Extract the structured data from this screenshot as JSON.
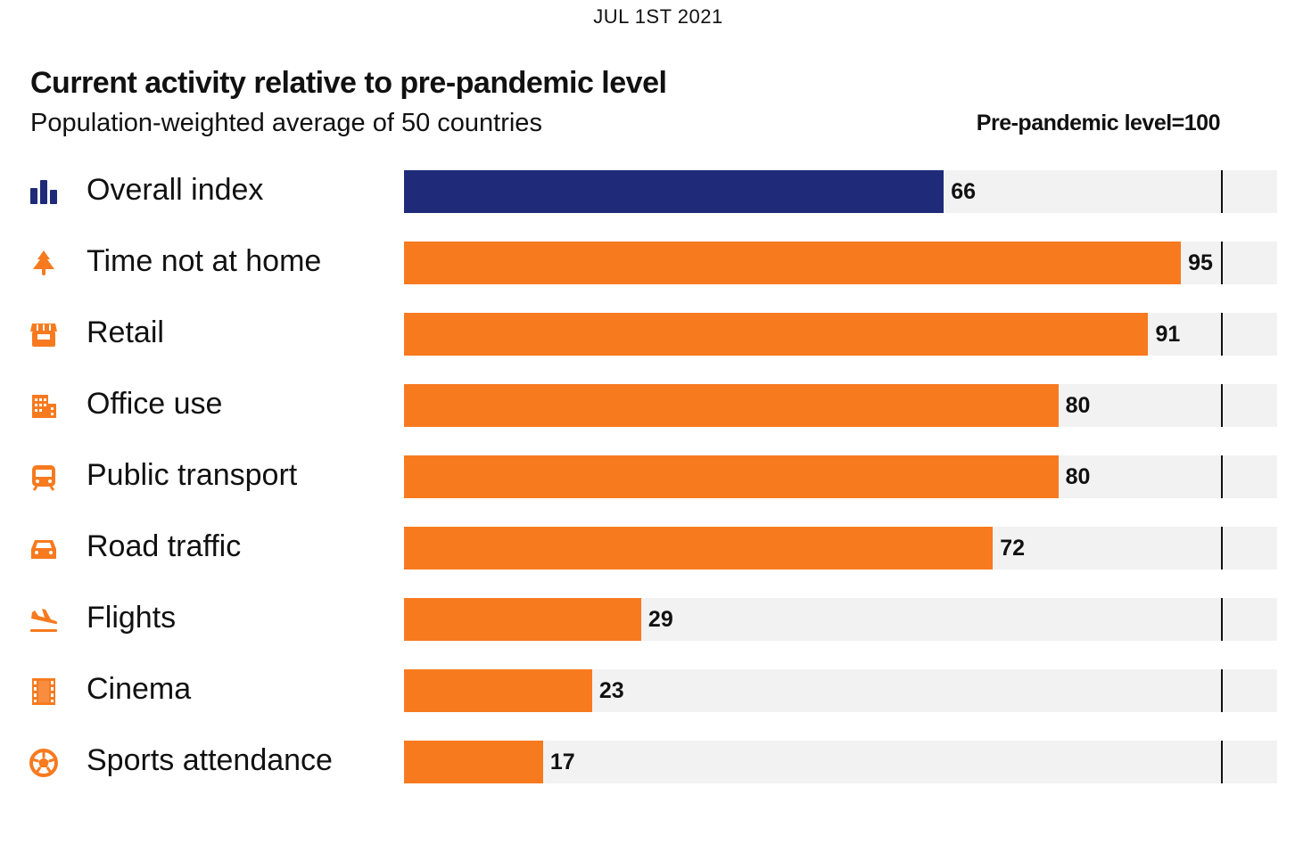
{
  "chart_data": {
    "type": "bar",
    "orientation": "horizontal",
    "date": "JUL 1ST 2021",
    "title": "Current activity relative to pre-pandemic level",
    "subtitle": "Population-weighted average of 50 countries",
    "reference_label": "Pre-pandemic level=100",
    "reference_value": 100,
    "xlim": [
      0,
      112
    ],
    "categories": [
      "Overall index",
      "Time not at home",
      "Retail",
      "Office use",
      "Public transport",
      "Road traffic",
      "Flights",
      "Cinema",
      "Sports attendance"
    ],
    "values": [
      66,
      95,
      91,
      80,
      80,
      72,
      29,
      23,
      17
    ],
    "icons": [
      "bar-chart-icon",
      "tree-icon",
      "storefront-icon",
      "office-building-icon",
      "train-icon",
      "car-icon",
      "plane-landing-icon",
      "film-icon",
      "soccer-ball-icon"
    ],
    "colors": [
      "#1f2a78",
      "#f77a1f",
      "#f77a1f",
      "#f77a1f",
      "#f77a1f",
      "#f77a1f",
      "#f77a1f",
      "#f77a1f",
      "#f77a1f"
    ],
    "track_color": "#f2f2f2"
  }
}
